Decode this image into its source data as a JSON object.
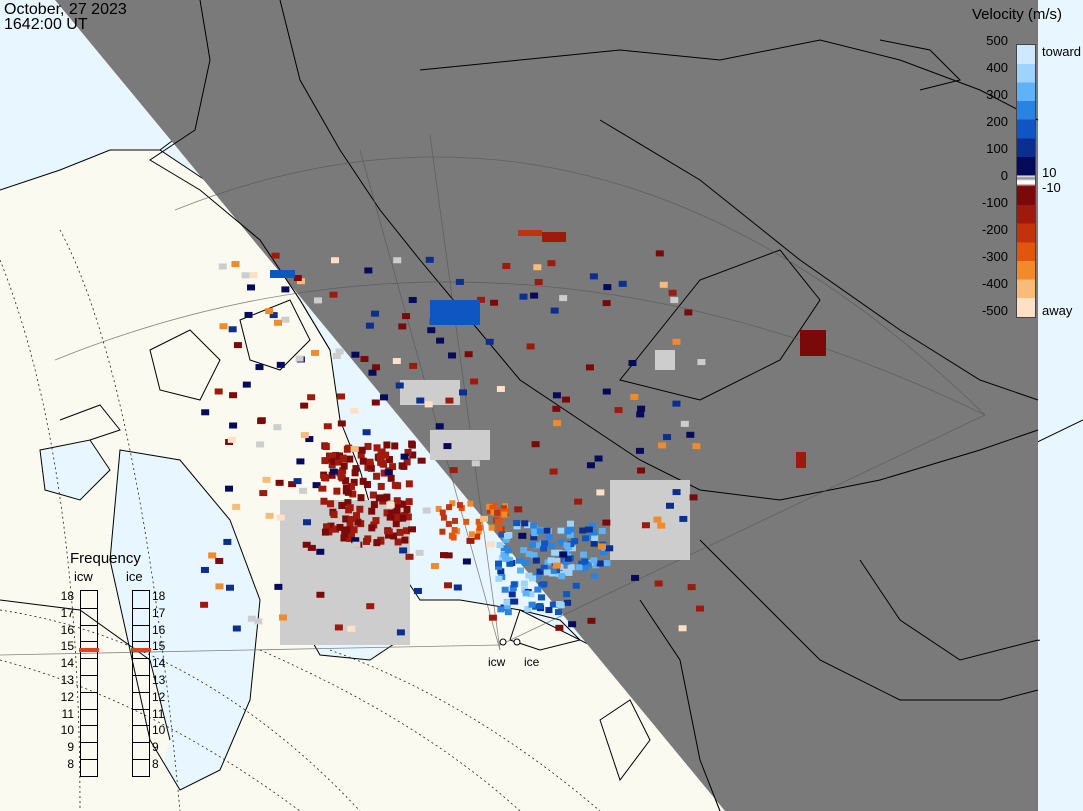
{
  "title": {
    "date": "October, 27 2023",
    "time": "1642:00 UT"
  },
  "velocity_scale": {
    "title": "Velocity (m/s)",
    "ticks": [
      "500",
      "400",
      "300",
      "200",
      "100",
      "0",
      "-100",
      "-200",
      "-300",
      "-400",
      "-500"
    ],
    "label_toward": "toward",
    "label_away": "away",
    "gap_pos": "10",
    "gap_neg": "-10",
    "colors_toward": [
      "#cfe8ff",
      "#9fd3ff",
      "#5eb2f5",
      "#2a83e0",
      "#0f56c2",
      "#0a2f8f",
      "#050a5a"
    ],
    "colors_away": [
      "#7a0a0a",
      "#9e1a0d",
      "#c0330c",
      "#e0550f",
      "#f08a2a",
      "#f9bb7a",
      "#fde0c6"
    ]
  },
  "frequency": {
    "title": "Frequency",
    "columns": [
      {
        "label": "icw",
        "selected": 15
      },
      {
        "label": "ice",
        "selected": 15
      }
    ],
    "ticks": [
      "18",
      "17",
      "16",
      "15",
      "14",
      "13",
      "12",
      "11",
      "10",
      "9",
      "8"
    ]
  },
  "sites": {
    "icw": "icw",
    "ice": "ice"
  },
  "colors": {
    "night": "#7a7a7a",
    "land_day": "#fafaf0",
    "ocean_day": "#e8f6ff",
    "gray_scatter": "#cdcdcd",
    "freq_marker": "#e0401a"
  }
}
